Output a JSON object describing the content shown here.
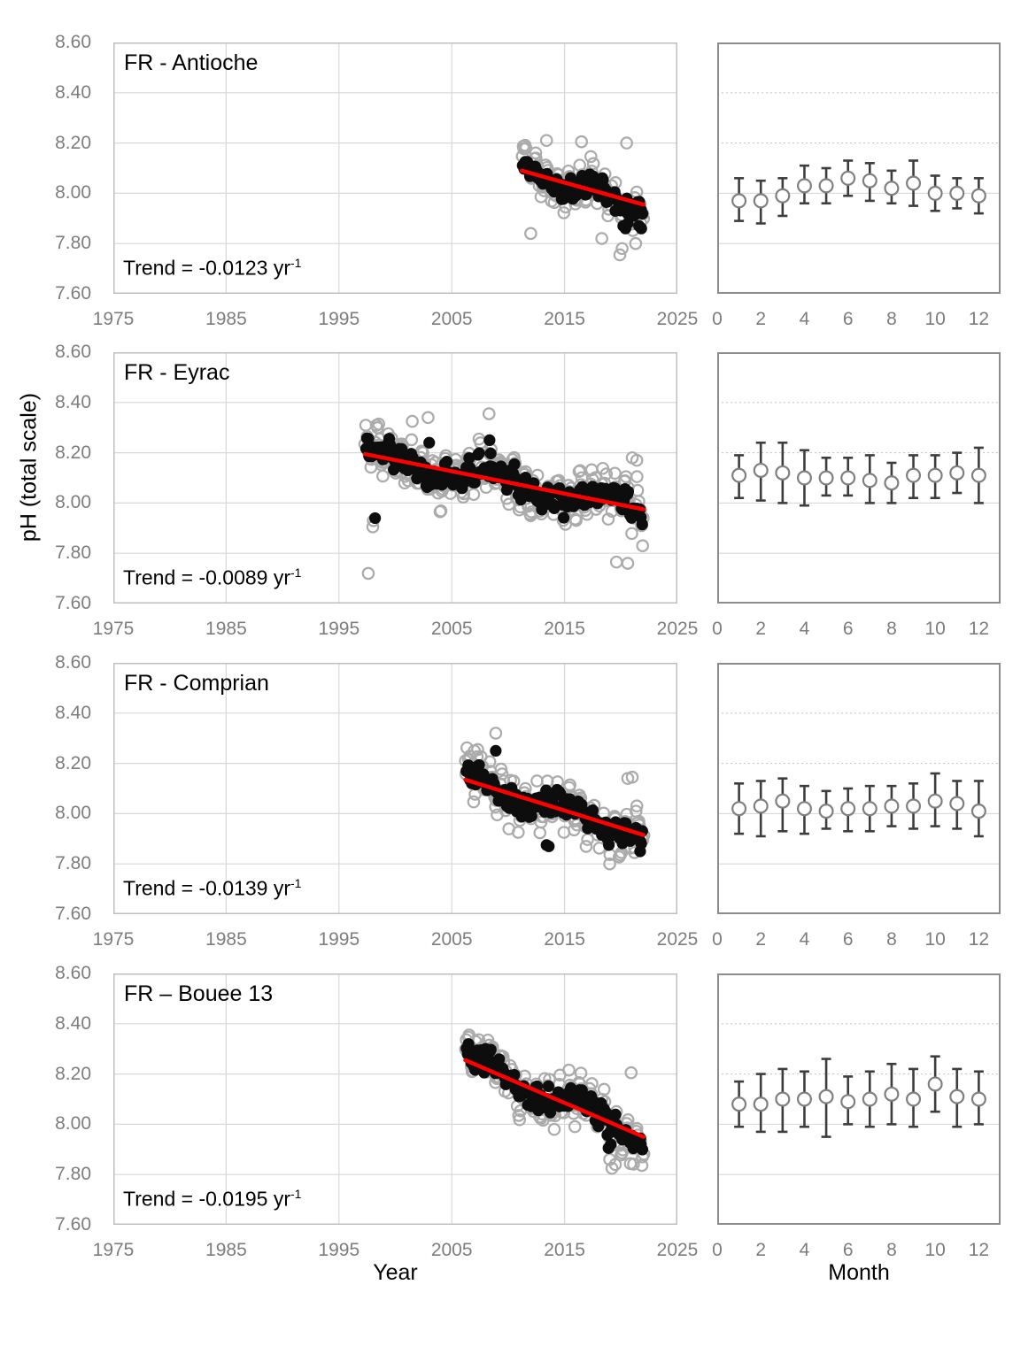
{
  "figure": {
    "y_axis_label": "pH (total scale)",
    "x_axis_label_left": "Year",
    "x_axis_label_right": "Month",
    "colors": {
      "trend_line": "#ff0000",
      "raw_points": "#ababab",
      "deseasonalized_points": "#0d0d0d",
      "error_bars": "#3d3d3d",
      "marker_stroke": "#7f7f7f",
      "gridline": "#d8d8d8",
      "left_border": "#bfbfbf",
      "right_border": "#8c8c8c",
      "tick_text": "#7d7d7d"
    },
    "left_axis": {
      "xlim": [
        1975,
        2025
      ],
      "ylim": [
        7.6,
        8.6
      ],
      "xtick_values": [
        1975,
        1985,
        1995,
        2005,
        2015,
        2025
      ],
      "xtick_labels": [
        "1975",
        "1985",
        "1995",
        "2005",
        "2015",
        "2025"
      ],
      "ytick_values": [
        8.6,
        8.4,
        8.2,
        8.0,
        7.8,
        7.6
      ],
      "ytick_labels": [
        "8.60",
        "8.40",
        "8.20",
        "8.00",
        "7.80",
        "7.60"
      ],
      "grid_x": [
        1985,
        1995,
        2005,
        2015
      ],
      "grid_y": [
        7.8,
        8.0,
        8.2,
        8.4
      ]
    },
    "right_axis": {
      "xlim": [
        0,
        13
      ],
      "ylim": [
        7.6,
        8.6
      ],
      "xtick_values": [
        0,
        2,
        4,
        6,
        8,
        10,
        12
      ],
      "xtick_labels": [
        "0",
        "2",
        "4",
        "6",
        "8",
        "10",
        "12"
      ],
      "grid_y_solid": [
        7.8,
        8.0
      ],
      "grid_y_dotted": [
        8.2,
        8.4
      ]
    },
    "rows": [
      {
        "title": "FR - Antioche",
        "trend_text": "Trend = -0.0123 yr",
        "trend_sup": "-1"
      },
      {
        "title": "FR - Eyrac",
        "trend_text": "Trend = -0.0089 yr",
        "trend_sup": "-1"
      },
      {
        "title": "FR - Comprian",
        "trend_text": "Trend = -0.0139 yr",
        "trend_sup": "-1"
      },
      {
        "title": "FR – Bouee 13",
        "trend_text": "Trend = -0.0195 yr",
        "trend_sup": "-1"
      }
    ]
  },
  "chart_data": [
    {
      "site": "FR - Antioche",
      "timeseries": {
        "type": "scatter",
        "x_unit": "year",
        "trend_per_year": -0.0123,
        "trend_line": {
          "x": [
            2011.2,
            2022.0
          ],
          "y": [
            8.09,
            7.955
          ]
        },
        "raw_monthly": {
          "n": 130,
          "start": 2011.25,
          "end": 2022.0,
          "seasonal_amp": 0.05,
          "season_phase": 0.2,
          "slow_amp": 0.035,
          "slow_period": 6,
          "slow_phase": 1.2,
          "noise": 0.04,
          "seed": 11,
          "y_clip": [
            7.755,
            8.215
          ],
          "extra": [
            [
              2013.4,
              8.21
            ],
            [
              2016.5,
              8.205
            ],
            [
              2020.5,
              8.2
            ],
            [
              2019.9,
              7.755
            ],
            [
              2020.1,
              7.78
            ],
            [
              2021.3,
              7.8
            ],
            [
              2012.0,
              7.84
            ],
            [
              2018.3,
              7.82
            ]
          ]
        },
        "deseasonalized_monthly": {
          "n": 108,
          "start": 2011.3,
          "end": 2021.9,
          "seasonal_amp": 0.02,
          "season_phase": 0.2,
          "slow_amp": 0.03,
          "slow_period": 6,
          "slow_phase": 1.2,
          "noise": 0.028,
          "seed": 12,
          "y_clip": [
            7.85,
            8.125
          ],
          "extra": [
            [
              2020.2,
              7.87
            ],
            [
              2020.4,
              7.86
            ],
            [
              2020.6,
              7.88
            ],
            [
              2021.6,
              7.87
            ],
            [
              2021.8,
              7.86
            ],
            [
              2019.5,
              7.93
            ]
          ]
        }
      },
      "monthly_climatology": {
        "type": "scatter",
        "error_bars": true,
        "months": [
          1,
          2,
          3,
          4,
          5,
          6,
          7,
          8,
          9,
          10,
          11,
          12
        ],
        "mean": [
          7.97,
          7.97,
          7.99,
          8.03,
          8.03,
          8.06,
          8.05,
          8.02,
          8.04,
          8.0,
          8.0,
          7.99
        ],
        "lo": [
          7.89,
          7.88,
          7.91,
          7.96,
          7.96,
          7.99,
          7.97,
          7.96,
          7.95,
          7.93,
          7.94,
          7.92
        ],
        "hi": [
          8.06,
          8.05,
          8.06,
          8.11,
          8.1,
          8.13,
          8.12,
          8.09,
          8.13,
          8.07,
          8.06,
          8.06
        ]
      }
    },
    {
      "site": "FR - Eyrac",
      "timeseries": {
        "type": "scatter",
        "x_unit": "year",
        "trend_per_year": -0.0089,
        "trend_line": {
          "x": [
            1997.3,
            2022.0
          ],
          "y": [
            8.195,
            7.975
          ]
        },
        "raw_monthly": {
          "n": 290,
          "start": 1997.3,
          "end": 2022.0,
          "seasonal_amp": 0.06,
          "season_phase": 0.2,
          "slow_amp": 0.04,
          "slow_period": 10,
          "slow_phase": 0.8,
          "noise": 0.05,
          "seed": 21,
          "y_clip": [
            7.83,
            8.355
          ],
          "extra": [
            [
              1997.6,
              7.72
            ],
            [
              2019.6,
              7.765
            ],
            [
              2020.6,
              7.76
            ],
            [
              1998.0,
              7.905
            ],
            [
              1998.05,
              7.93
            ],
            [
              2008.3,
              8.355
            ],
            [
              2002.9,
              8.34
            ],
            [
              2001.5,
              8.325
            ],
            [
              2021.0,
              8.18
            ],
            [
              2021.4,
              8.17
            ]
          ]
        },
        "deseasonalized_monthly": {
          "n": 240,
          "start": 1997.4,
          "end": 2021.9,
          "seasonal_amp": 0.025,
          "season_phase": 0.2,
          "slow_amp": 0.035,
          "slow_period": 10,
          "slow_phase": 0.8,
          "noise": 0.03,
          "seed": 22,
          "y_clip": [
            7.915,
            8.26
          ],
          "extra": [
            [
              1998.2,
              7.94
            ],
            [
              2008.35,
              8.25
            ],
            [
              2003.0,
              8.24
            ]
          ]
        }
      },
      "monthly_climatology": {
        "type": "scatter",
        "error_bars": true,
        "months": [
          1,
          2,
          3,
          4,
          5,
          6,
          7,
          8,
          9,
          10,
          11,
          12
        ],
        "mean": [
          8.11,
          8.13,
          8.12,
          8.1,
          8.1,
          8.1,
          8.09,
          8.08,
          8.11,
          8.11,
          8.12,
          8.11
        ],
        "lo": [
          8.02,
          8.01,
          8.0,
          7.99,
          8.03,
          8.03,
          8.0,
          8.0,
          8.02,
          8.02,
          8.04,
          8.0
        ],
        "hi": [
          8.19,
          8.24,
          8.24,
          8.21,
          8.18,
          8.18,
          8.19,
          8.16,
          8.19,
          8.19,
          8.2,
          8.22
        ]
      }
    },
    {
      "site": "FR - Comprian",
      "timeseries": {
        "type": "scatter",
        "x_unit": "year",
        "trend_per_year": -0.0139,
        "trend_line": {
          "x": [
            2006.2,
            2022.0
          ],
          "y": [
            8.135,
            7.915
          ]
        },
        "raw_monthly": {
          "n": 185,
          "start": 2006.2,
          "end": 2022.0,
          "seasonal_amp": 0.055,
          "season_phase": 0.2,
          "slow_amp": 0.03,
          "slow_period": 8,
          "slow_phase": 0.9,
          "noise": 0.048,
          "seed": 31,
          "y_clip": [
            7.8,
            8.325
          ],
          "extra": [
            [
              2008.9,
              8.32
            ],
            [
              2019.0,
              7.8
            ],
            [
              2021.2,
              7.845
            ],
            [
              2007.0,
              8.25
            ],
            [
              2007.3,
              8.255
            ],
            [
              2020.6,
              8.14
            ],
            [
              2021.0,
              8.145
            ]
          ]
        },
        "deseasonalized_monthly": {
          "n": 158,
          "start": 2006.3,
          "end": 2021.9,
          "seasonal_amp": 0.02,
          "season_phase": 0.2,
          "slow_amp": 0.028,
          "slow_period": 8,
          "slow_phase": 0.9,
          "noise": 0.03,
          "seed": 32,
          "y_clip": [
            7.845,
            8.25
          ],
          "extra": [
            [
              2008.9,
              8.25
            ],
            [
              2021.7,
              7.85
            ],
            [
              2013.4,
              7.875
            ],
            [
              2013.6,
              7.87
            ]
          ]
        }
      },
      "monthly_climatology": {
        "type": "scatter",
        "error_bars": true,
        "months": [
          1,
          2,
          3,
          4,
          5,
          6,
          7,
          8,
          9,
          10,
          11,
          12
        ],
        "mean": [
          8.02,
          8.03,
          8.05,
          8.02,
          8.01,
          8.02,
          8.02,
          8.03,
          8.03,
          8.05,
          8.04,
          8.01
        ],
        "lo": [
          7.92,
          7.91,
          7.93,
          7.92,
          7.94,
          7.93,
          7.93,
          7.95,
          7.94,
          7.95,
          7.94,
          7.91
        ],
        "hi": [
          8.12,
          8.13,
          8.14,
          8.11,
          8.09,
          8.1,
          8.11,
          8.11,
          8.12,
          8.16,
          8.13,
          8.13
        ]
      }
    },
    {
      "site": "FR – Bouee 13",
      "timeseries": {
        "type": "scatter",
        "x_unit": "year",
        "trend_per_year": -0.0195,
        "trend_line": {
          "x": [
            2006.2,
            2022.0
          ],
          "y": [
            8.255,
            7.95
          ]
        },
        "raw_monthly": {
          "n": 185,
          "start": 2006.2,
          "end": 2022.0,
          "seasonal_amp": 0.055,
          "season_phase": 0.2,
          "slow_amp": 0.04,
          "slow_period": 9,
          "slow_phase": 0.6,
          "noise": 0.05,
          "seed": 41,
          "y_clip": [
            7.82,
            8.355
          ],
          "extra": [
            [
              2019.2,
              7.825
            ],
            [
              2019.5,
              7.84
            ],
            [
              2020.9,
              8.205
            ],
            [
              2007.1,
              8.33
            ],
            [
              2008.2,
              8.335
            ],
            [
              2019.0,
              7.86
            ]
          ]
        },
        "deseasonalized_monthly": {
          "n": 158,
          "start": 2006.3,
          "end": 2021.9,
          "seasonal_amp": 0.022,
          "season_phase": 0.2,
          "slow_amp": 0.035,
          "slow_period": 9,
          "slow_phase": 0.6,
          "noise": 0.03,
          "seed": 42,
          "y_clip": [
            7.895,
            8.32
          ],
          "extra": [
            [
              2018.9,
              7.905
            ],
            [
              2019.1,
              7.92
            ],
            [
              2008.0,
              8.3
            ],
            [
              2007.6,
              8.295
            ]
          ]
        }
      },
      "monthly_climatology": {
        "type": "scatter",
        "error_bars": true,
        "months": [
          1,
          2,
          3,
          4,
          5,
          6,
          7,
          8,
          9,
          10,
          11,
          12
        ],
        "mean": [
          8.08,
          8.08,
          8.1,
          8.1,
          8.11,
          8.09,
          8.1,
          8.12,
          8.1,
          8.16,
          8.11,
          8.1
        ],
        "lo": [
          7.99,
          7.97,
          7.97,
          7.99,
          7.95,
          8.0,
          7.99,
          8.0,
          7.99,
          8.05,
          7.99,
          8.0
        ],
        "hi": [
          8.17,
          8.2,
          8.22,
          8.21,
          8.26,
          8.19,
          8.21,
          8.24,
          8.22,
          8.27,
          8.22,
          8.21
        ]
      }
    }
  ]
}
